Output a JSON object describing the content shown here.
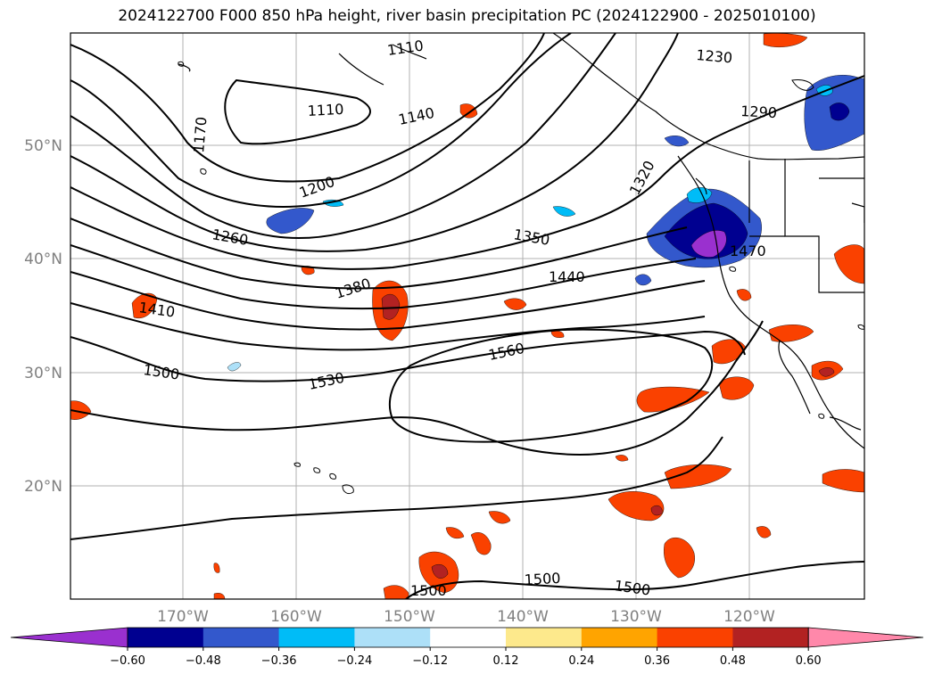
{
  "title": "2024122700 F000 850 hPa height, river basin precipitation PC (2024122900 - 2025010100)",
  "lat_labels": [
    "50°N",
    "40°N",
    "30°N",
    "20°N"
  ],
  "lon_labels": [
    "170°W",
    "160°W",
    "150°W",
    "140°W",
    "130°W",
    "120°W"
  ],
  "contour_labels": [
    "1110",
    "1110",
    "1140",
    "1170",
    "1200",
    "1230",
    "1260",
    "1290",
    "1320",
    "1350",
    "1380",
    "1410",
    "1440",
    "1470",
    "1500",
    "1530",
    "1560",
    "1500",
    "1500",
    "1500"
  ],
  "colorbar": {
    "tick_labels": [
      "−0.60",
      "−0.48",
      "−0.36",
      "−0.24",
      "−0.12",
      "0.12",
      "0.24",
      "0.36",
      "0.48",
      "0.60"
    ],
    "colors": [
      "#9a30cf",
      "#000090",
      "#3358cc",
      "#00bcf7",
      "#ade0f8",
      "#ffffff",
      "#fde98c",
      "#ffa400",
      "#fa4100",
      "#b22222",
      "#ff88aa"
    ]
  }
}
